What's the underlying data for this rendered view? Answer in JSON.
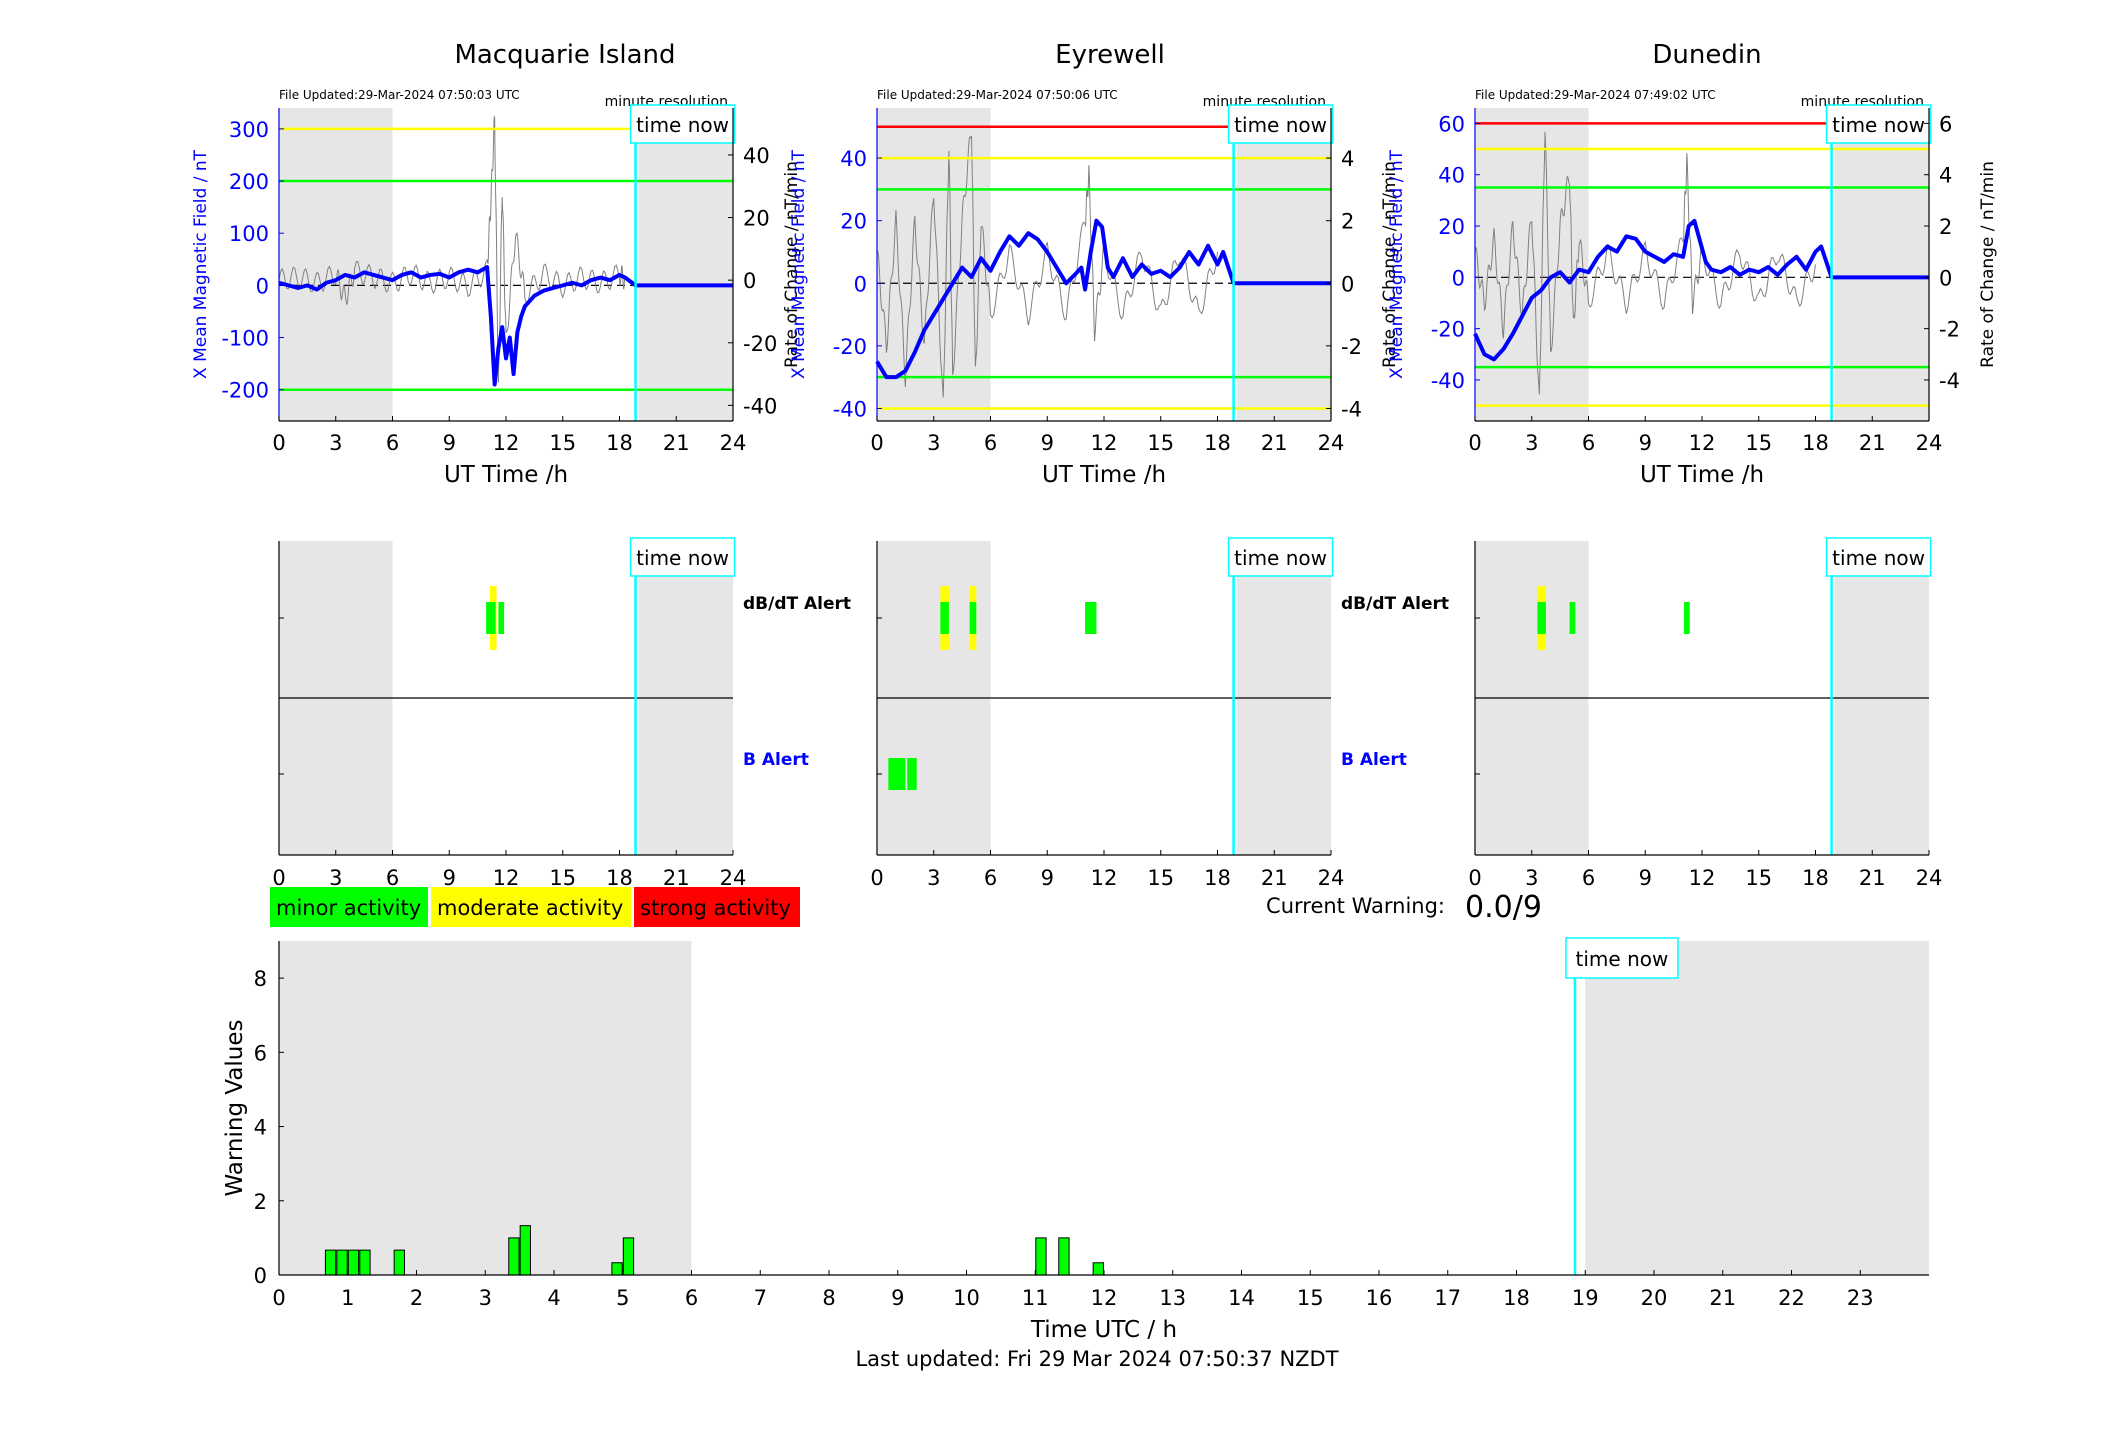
{
  "labels": {
    "minute_resolution": "minute resolution",
    "time_now": "time now",
    "ut_time_xlabel": "UT Time /h",
    "ylabel_left": "X Mean Magnetic Field / nT",
    "ylabel_right": "Rate of Change / nT/min",
    "dbdt_alert": "dB/dT Alert",
    "b_alert": "B Alert",
    "current_warning_label": "Current Warning:",
    "current_warning_value": "0.0/9",
    "last_updated": "Last updated: Fri 29 Mar 2024 07:50:37 NZDT"
  },
  "legend": [
    {
      "label": "minor activity",
      "color": "#00ff00"
    },
    {
      "label": "moderate activity",
      "color": "#ffff00"
    },
    {
      "label": "strong activity",
      "color": "#ff0000"
    }
  ],
  "colors": {
    "field_line": "#0000ff",
    "rate_line": "#808080",
    "night_shade": "#e6e6e6",
    "time_now": "#00ffff",
    "minor": "#00ff00",
    "moderate": "#ffff00",
    "strong": "#ff0000"
  },
  "chart_data": [
    {
      "type": "line",
      "station": "Macquarie Island",
      "file_updated": "File Updated:29-Mar-2024 07:50:03 UTC",
      "xlim": [
        0,
        24
      ],
      "xticks": [
        0,
        3,
        6,
        9,
        12,
        15,
        18,
        21,
        24
      ],
      "ylim": [
        -260,
        340
      ],
      "yticks": [
        -200,
        -100,
        0,
        100,
        200,
        300
      ],
      "y2lim": [
        -45,
        55
      ],
      "y2ticks": [
        -40,
        -20,
        0,
        20,
        40
      ],
      "thresholds": [
        {
          "value": 300,
          "color": "#ffff00"
        },
        {
          "value": 200,
          "color": "#00ff00"
        },
        {
          "value": -200,
          "color": "#00ff00"
        }
      ],
      "night_shade": [
        [
          0,
          6
        ],
        [
          19,
          24
        ]
      ],
      "time_now": 18.85,
      "field_series": {
        "x": [
          0,
          0.5,
          1,
          1.5,
          2,
          2.5,
          3,
          3.5,
          4,
          4.5,
          5,
          5.5,
          6,
          6.5,
          7,
          7.5,
          8,
          8.5,
          9,
          9.5,
          10,
          10.5,
          11,
          11.2,
          11.4,
          11.6,
          11.8,
          12,
          12.2,
          12.4,
          12.6,
          12.8,
          13,
          13.5,
          14,
          14.5,
          15,
          15.5,
          16,
          16.5,
          17,
          17.5,
          18,
          18.3,
          18.85,
          24
        ],
        "y": [
          5,
          0,
          -5,
          0,
          -8,
          5,
          10,
          20,
          15,
          25,
          20,
          15,
          10,
          20,
          25,
          15,
          20,
          22,
          15,
          25,
          30,
          25,
          35,
          -60,
          -190,
          -120,
          -80,
          -140,
          -100,
          -170,
          -90,
          -60,
          -40,
          -20,
          -10,
          -5,
          0,
          5,
          0,
          10,
          15,
          10,
          20,
          15,
          0,
          0
        ]
      },
      "rate_series": {
        "x": [
          0,
          1,
          2,
          3,
          3.5,
          4,
          5,
          6,
          7,
          8,
          9,
          10,
          11,
          11.2,
          11.4,
          11.6,
          11.8,
          12,
          12.5,
          13,
          14,
          15,
          16,
          17,
          18,
          18.3
        ],
        "y": [
          0,
          1,
          -1,
          2,
          -6,
          3,
          1,
          -1,
          2,
          -1,
          1,
          -2,
          3,
          25,
          52,
          -35,
          30,
          -20,
          15,
          -5,
          2,
          -2,
          1,
          -1,
          2,
          0
        ]
      },
      "alerts": {
        "dbdt": [
          {
            "x0": 11.15,
            "x1": 11.5,
            "color": "#ffff00",
            "level": "moderate"
          },
          {
            "x0": 10.95,
            "x1": 11.45,
            "color": "#00ff00",
            "level": "minor"
          },
          {
            "x0": 11.6,
            "x1": 11.9,
            "color": "#00ff00",
            "level": "minor"
          }
        ],
        "b": []
      }
    },
    {
      "type": "line",
      "station": "Eyrewell",
      "file_updated": "File Updated:29-Mar-2024 07:50:06 UTC",
      "xlim": [
        0,
        24
      ],
      "xticks": [
        0,
        3,
        6,
        9,
        12,
        15,
        18,
        21,
        24
      ],
      "ylim": [
        -44,
        56
      ],
      "yticks": [
        -40,
        -20,
        0,
        20,
        40
      ],
      "y2lim": [
        -4.4,
        5.6
      ],
      "y2ticks": [
        -4,
        -2,
        0,
        2,
        4
      ],
      "thresholds": [
        {
          "value": 50,
          "color": "#ff0000"
        },
        {
          "value": 40,
          "color": "#ffff00"
        },
        {
          "value": 30,
          "color": "#00ff00"
        },
        {
          "value": -30,
          "color": "#00ff00"
        },
        {
          "value": -40,
          "color": "#ffff00"
        }
      ],
      "night_shade": [
        [
          0,
          6
        ],
        [
          19,
          24
        ]
      ],
      "time_now": 18.85,
      "field_series": {
        "x": [
          0,
          0.5,
          1,
          1.5,
          2,
          2.5,
          3,
          3.5,
          4,
          4.5,
          5,
          5.5,
          6,
          6.5,
          7,
          7.5,
          8,
          8.5,
          9,
          9.5,
          10,
          10.5,
          10.8,
          11,
          11.3,
          11.6,
          11.9,
          12.2,
          12.5,
          13,
          13.5,
          14,
          14.5,
          15,
          15.5,
          16,
          16.5,
          17,
          17.5,
          18,
          18.3,
          18.85,
          24
        ],
        "y": [
          -25,
          -30,
          -30,
          -28,
          -22,
          -15,
          -10,
          -5,
          0,
          5,
          2,
          8,
          4,
          10,
          15,
          12,
          16,
          14,
          10,
          5,
          0,
          3,
          5,
          -2,
          10,
          20,
          18,
          5,
          2,
          8,
          2,
          6,
          3,
          4,
          2,
          5,
          10,
          6,
          12,
          6,
          10,
          0,
          0
        ]
      },
      "rate_series": {
        "x": [
          0,
          0.5,
          1,
          1.5,
          2,
          2.5,
          3,
          3.5,
          3.8,
          4,
          4.5,
          5,
          5.2,
          5.5,
          6,
          7,
          8,
          9,
          10,
          11,
          11.2,
          11.5,
          12,
          13,
          14,
          15,
          16,
          17,
          18
        ],
        "y": [
          1,
          -2,
          2,
          -3,
          2,
          -2,
          3,
          -4,
          4.5,
          -3,
          2,
          5,
          -3,
          2,
          -1,
          1,
          -1,
          1,
          -1,
          2,
          3.5,
          -1.5,
          1,
          -1,
          1,
          -1,
          1,
          -1,
          1
        ]
      },
      "alerts": {
        "dbdt": [
          {
            "x0": 3.35,
            "x1": 3.8,
            "color": "#ffff00",
            "level": "moderate"
          },
          {
            "x0": 3.35,
            "x1": 3.8,
            "color": "#00ff00",
            "level": "minor"
          },
          {
            "x0": 4.9,
            "x1": 5.25,
            "color": "#ffff00",
            "level": "moderate"
          },
          {
            "x0": 4.9,
            "x1": 5.25,
            "color": "#00ff00",
            "level": "minor"
          },
          {
            "x0": 11.0,
            "x1": 11.6,
            "color": "#00ff00",
            "level": "minor"
          }
        ],
        "b": [
          {
            "x0": 0.6,
            "x1": 1.5,
            "color": "#00ff00",
            "level": "minor"
          },
          {
            "x0": 1.6,
            "x1": 2.1,
            "color": "#00ff00",
            "level": "minor"
          }
        ]
      }
    },
    {
      "type": "line",
      "station": "Dunedin",
      "file_updated": "File Updated:29-Mar-2024 07:49:02 UTC",
      "xlim": [
        0,
        24
      ],
      "xticks": [
        0,
        3,
        6,
        9,
        12,
        15,
        18,
        21,
        24
      ],
      "ylim": [
        -56,
        66
      ],
      "yticks": [
        -40,
        -20,
        0,
        20,
        40,
        60
      ],
      "y2lim": [
        -5.6,
        6.6
      ],
      "y2ticks": [
        -4,
        -2,
        0,
        2,
        4,
        6
      ],
      "thresholds": [
        {
          "value": 60,
          "color": "#ff0000"
        },
        {
          "value": 50,
          "color": "#ffff00"
        },
        {
          "value": 35,
          "color": "#00ff00"
        },
        {
          "value": -35,
          "color": "#00ff00"
        },
        {
          "value": -50,
          "color": "#ffff00"
        }
      ],
      "night_shade": [
        [
          0,
          6
        ],
        [
          19,
          24
        ]
      ],
      "time_now": 18.85,
      "field_series": {
        "x": [
          0,
          0.5,
          1,
          1.5,
          2,
          2.5,
          3,
          3.5,
          4,
          4.5,
          5,
          5.5,
          6,
          6.5,
          7,
          7.5,
          8,
          8.5,
          9,
          9.5,
          10,
          10.5,
          11,
          11.3,
          11.6,
          11.9,
          12.2,
          12.5,
          13,
          13.5,
          14,
          14.5,
          15,
          15.5,
          16,
          16.5,
          17,
          17.5,
          18,
          18.3,
          18.85,
          24
        ],
        "y": [
          -22,
          -30,
          -32,
          -28,
          -22,
          -15,
          -8,
          -5,
          0,
          2,
          -2,
          3,
          2,
          8,
          12,
          10,
          16,
          15,
          10,
          8,
          6,
          9,
          8,
          20,
          22,
          14,
          6,
          3,
          2,
          4,
          1,
          3,
          2,
          4,
          1,
          5,
          8,
          3,
          10,
          12,
          0,
          0
        ]
      },
      "rate_series": {
        "x": [
          0,
          0.5,
          1,
          1.5,
          2,
          2.5,
          3,
          3.4,
          3.7,
          4,
          4.5,
          5,
          5.2,
          5.5,
          6,
          7,
          8,
          9,
          10,
          11,
          11.2,
          11.5,
          12,
          13,
          14,
          15,
          16,
          17,
          18
        ],
        "y": [
          1,
          -1,
          1.5,
          -2,
          2,
          -1.5,
          2.5,
          -5,
          6,
          -3,
          2,
          4,
          -2,
          1.5,
          -1,
          1,
          -1,
          1,
          -1,
          1.5,
          4.5,
          -1,
          1,
          -1,
          1,
          -1,
          1,
          -1,
          0.5
        ]
      },
      "alerts": {
        "dbdt": [
          {
            "x0": 3.3,
            "x1": 3.75,
            "color": "#ffff00",
            "level": "moderate"
          },
          {
            "x0": 3.3,
            "x1": 3.75,
            "color": "#00ff00",
            "level": "minor"
          },
          {
            "x0": 5.0,
            "x1": 5.3,
            "color": "#00ff00",
            "level": "minor"
          },
          {
            "x0": 11.05,
            "x1": 11.35,
            "color": "#00ff00",
            "level": "minor"
          }
        ],
        "b": []
      }
    },
    {
      "type": "bar",
      "title": "",
      "xlabel": "Time UTC / h",
      "ylabel": "Warning Values",
      "xlim": [
        0,
        24
      ],
      "xticks": [
        0,
        1,
        2,
        3,
        4,
        5,
        6,
        7,
        8,
        9,
        10,
        11,
        12,
        13,
        14,
        15,
        16,
        17,
        18,
        19,
        20,
        21,
        22,
        23
      ],
      "ylim": [
        0,
        9
      ],
      "yticks": [
        0,
        2,
        4,
        6,
        8
      ],
      "night_shade": [
        [
          0,
          6
        ],
        [
          19,
          24
        ]
      ],
      "time_now": 18.85,
      "bars": [
        {
          "x": 0.75,
          "value": 0.67
        },
        {
          "x": 0.917,
          "value": 0.67
        },
        {
          "x": 1.083,
          "value": 0.67
        },
        {
          "x": 1.25,
          "value": 0.67
        },
        {
          "x": 1.75,
          "value": 0.67
        },
        {
          "x": 3.417,
          "value": 1.0
        },
        {
          "x": 3.583,
          "value": 1.33
        },
        {
          "x": 4.917,
          "value": 0.33
        },
        {
          "x": 5.083,
          "value": 1.0
        },
        {
          "x": 11.083,
          "value": 1.0
        },
        {
          "x": 11.417,
          "value": 1.0
        },
        {
          "x": 11.917,
          "value": 0.33
        }
      ],
      "bar_width": 0.15
    }
  ]
}
